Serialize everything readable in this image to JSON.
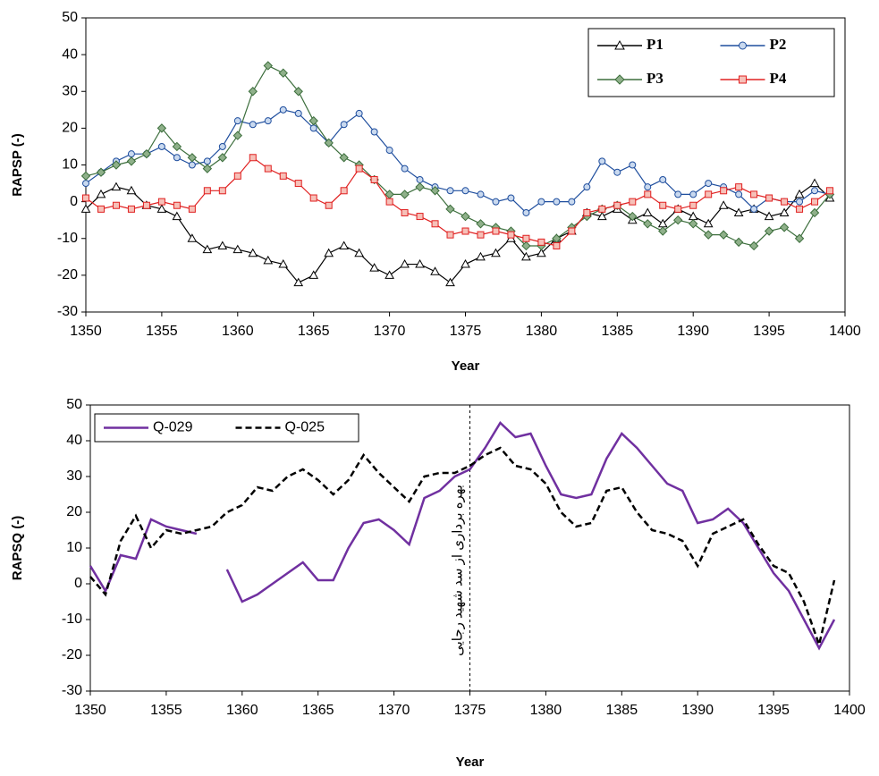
{
  "chart_data": [
    {
      "type": "line",
      "ylabel": "RAPSP (-)",
      "xlabel": "Year",
      "x": [
        1350,
        1351,
        1352,
        1353,
        1354,
        1355,
        1356,
        1357,
        1358,
        1359,
        1360,
        1361,
        1362,
        1363,
        1364,
        1365,
        1366,
        1367,
        1368,
        1369,
        1370,
        1371,
        1372,
        1373,
        1374,
        1375,
        1376,
        1377,
        1378,
        1379,
        1380,
        1381,
        1382,
        1383,
        1384,
        1385,
        1386,
        1387,
        1388,
        1389,
        1390,
        1391,
        1392,
        1393,
        1394,
        1395,
        1396,
        1397,
        1398,
        1399
      ],
      "xlim": [
        1350,
        1400
      ],
      "xticks": [
        1350,
        1355,
        1360,
        1365,
        1370,
        1375,
        1380,
        1385,
        1390,
        1395,
        1400
      ],
      "ylim": [
        -30,
        50
      ],
      "yticks": [
        -30,
        -20,
        -10,
        0,
        10,
        20,
        30,
        40,
        50
      ],
      "legend": "upper right",
      "series": [
        {
          "name": "P1",
          "color": "#000000",
          "marker": "triangle",
          "markerfill": "#ffffff",
          "values": [
            -2,
            2,
            4,
            3,
            -1,
            -2,
            -4,
            -10,
            -13,
            -12,
            -13,
            -14,
            -16,
            -17,
            -22,
            -20,
            -14,
            -12,
            -14,
            -18,
            -20,
            -17,
            -17,
            -19,
            -22,
            -17,
            -15,
            -14,
            -10,
            -15,
            -14,
            -10,
            -8,
            -3,
            -4,
            -2,
            -5,
            -3,
            -6,
            -2,
            -4,
            -6,
            -1,
            -3,
            -2,
            -4,
            -3,
            2,
            5,
            1
          ]
        },
        {
          "name": "P2",
          "color": "#1f4e9e",
          "marker": "circle",
          "markerfill": "#c9d9ef",
          "values": [
            5,
            8,
            11,
            13,
            13,
            15,
            12,
            10,
            11,
            15,
            22,
            21,
            22,
            25,
            24,
            20,
            16,
            21,
            24,
            19,
            14,
            9,
            6,
            4,
            3,
            3,
            2,
            0,
            1,
            -3,
            0,
            0,
            0,
            4,
            11,
            8,
            10,
            4,
            6,
            2,
            2,
            5,
            4,
            2,
            -2,
            1,
            0,
            0,
            3,
            2
          ]
        },
        {
          "name": "P3",
          "color": "#3c6e3c",
          "marker": "diamond",
          "markerfill": "#8fb08a",
          "values": [
            7,
            8,
            10,
            11,
            13,
            20,
            15,
            12,
            9,
            12,
            18,
            30,
            37,
            35,
            30,
            22,
            16,
            12,
            10,
            6,
            2,
            2,
            4,
            3,
            -2,
            -4,
            -6,
            -7,
            -8,
            -12,
            -12,
            -10,
            -7,
            -4,
            -2,
            -1,
            -4,
            -6,
            -8,
            -5,
            -6,
            -9,
            -9,
            -11,
            -12,
            -8,
            -7,
            -10,
            -3,
            2
          ]
        },
        {
          "name": "P4",
          "color": "#e02020",
          "marker": "square",
          "markerfill": "#f6c0b8",
          "values": [
            1,
            -2,
            -1,
            -2,
            -1,
            0,
            -1,
            -2,
            3,
            3,
            7,
            12,
            9,
            7,
            5,
            1,
            -1,
            3,
            9,
            6,
            0,
            -3,
            -4,
            -6,
            -9,
            -8,
            -9,
            -8,
            -9,
            -10,
            -11,
            -12,
            -8,
            -3,
            -2,
            -1,
            0,
            2,
            -1,
            -2,
            -1,
            2,
            3,
            4,
            2,
            1,
            0,
            -2,
            0,
            3
          ]
        }
      ]
    },
    {
      "type": "line",
      "ylabel": "RAPSQ (-)",
      "xlabel": "Year",
      "x": [
        1350,
        1351,
        1352,
        1353,
        1354,
        1355,
        1356,
        1357,
        1358,
        1359,
        1360,
        1361,
        1362,
        1363,
        1364,
        1365,
        1366,
        1367,
        1368,
        1369,
        1370,
        1371,
        1372,
        1373,
        1374,
        1375,
        1376,
        1377,
        1378,
        1379,
        1380,
        1381,
        1382,
        1383,
        1384,
        1385,
        1386,
        1387,
        1388,
        1389,
        1390,
        1391,
        1392,
        1393,
        1394,
        1395,
        1396,
        1397,
        1398,
        1399
      ],
      "xlim": [
        1350,
        1400
      ],
      "xticks": [
        1350,
        1355,
        1360,
        1365,
        1370,
        1375,
        1380,
        1385,
        1390,
        1395,
        1400
      ],
      "ylim": [
        -30,
        50
      ],
      "yticks": [
        -30,
        -20,
        -10,
        0,
        10,
        20,
        30,
        40,
        50
      ],
      "legend": "upper left",
      "annotation": {
        "text": "بهره برداری از سد شهید رجایی",
        "x": 1375
      },
      "series": [
        {
          "name": "Q-029",
          "color": "#7030a0",
          "linestyle": "solid",
          "values": [
            5,
            -2,
            8,
            7,
            18,
            16,
            15,
            14,
            null,
            4,
            -5,
            -3,
            0,
            3,
            6,
            1,
            1,
            10,
            17,
            18,
            15,
            11,
            24,
            26,
            30,
            32,
            38,
            45,
            41,
            42,
            33,
            25,
            24,
            25,
            35,
            42,
            38,
            33,
            28,
            26,
            17,
            18,
            21,
            17,
            10,
            3,
            -2,
            -10,
            -18,
            -10
          ]
        },
        {
          "name": "Q-025",
          "color": "#000000",
          "linestyle": "dashed",
          "values": [
            2,
            -3,
            12,
            19,
            10,
            15,
            14,
            15,
            16,
            20,
            22,
            27,
            26,
            30,
            32,
            29,
            25,
            29,
            36,
            31,
            27,
            23,
            30,
            31,
            31,
            33,
            36,
            38,
            33,
            32,
            28,
            20,
            16,
            17,
            26,
            27,
            20,
            15,
            14,
            12,
            5,
            14,
            16,
            18,
            11,
            5,
            3,
            -5,
            -17,
            1
          ]
        }
      ]
    }
  ]
}
